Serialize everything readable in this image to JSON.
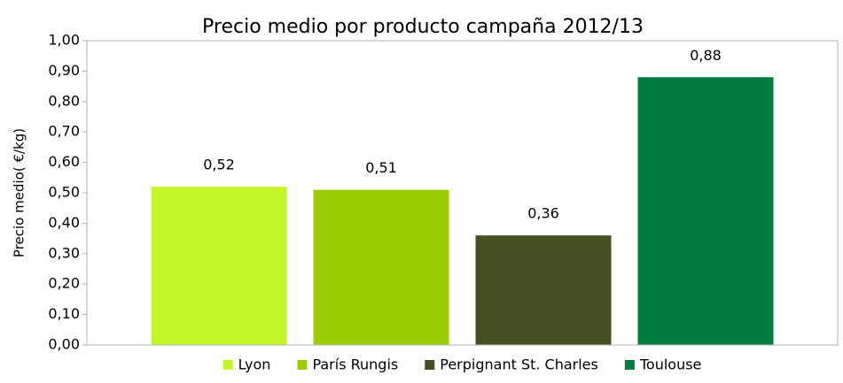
{
  "chart_data": {
    "type": "bar",
    "title": "Precio medio por producto campaña 2012/13",
    "y_label": "Precio medio( €/kg)",
    "categories": [
      null
    ],
    "series": [
      {
        "name": "Lyon",
        "color": "#c4f527",
        "values": [
          0.52
        ],
        "value_labels": [
          "0,52"
        ]
      },
      {
        "name": "París Rungis",
        "color": "#9bcc05",
        "values": [
          0.51
        ],
        "value_labels": [
          "0,51"
        ]
      },
      {
        "name": "Perpignant St. Charles",
        "color": "#445021",
        "values": [
          0.36
        ],
        "value_labels": [
          "0,36"
        ]
      },
      {
        "name": "Toulouse",
        "color": "#007c3e",
        "values": [
          0.88
        ],
        "value_labels": [
          "0,88"
        ]
      }
    ],
    "ylim": [
      0,
      1
    ],
    "yticks": [
      {
        "value": 0,
        "label": "0,00"
      },
      {
        "value": 0.1,
        "label": "0,10"
      },
      {
        "value": 0.2,
        "label": "0,20"
      },
      {
        "value": 0.3,
        "label": "0,30"
      },
      {
        "value": 0.4,
        "label": "0,40"
      },
      {
        "value": 0.5,
        "label": "0,50"
      },
      {
        "value": 0.6,
        "label": "0,60"
      },
      {
        "value": 0.7,
        "label": "0,70"
      },
      {
        "value": 0.8,
        "label": "0,80"
      },
      {
        "value": 0.9,
        "label": "0,90"
      },
      {
        "value": 1,
        "label": "1,00"
      }
    ],
    "grid": false,
    "legend": "bottom"
  }
}
